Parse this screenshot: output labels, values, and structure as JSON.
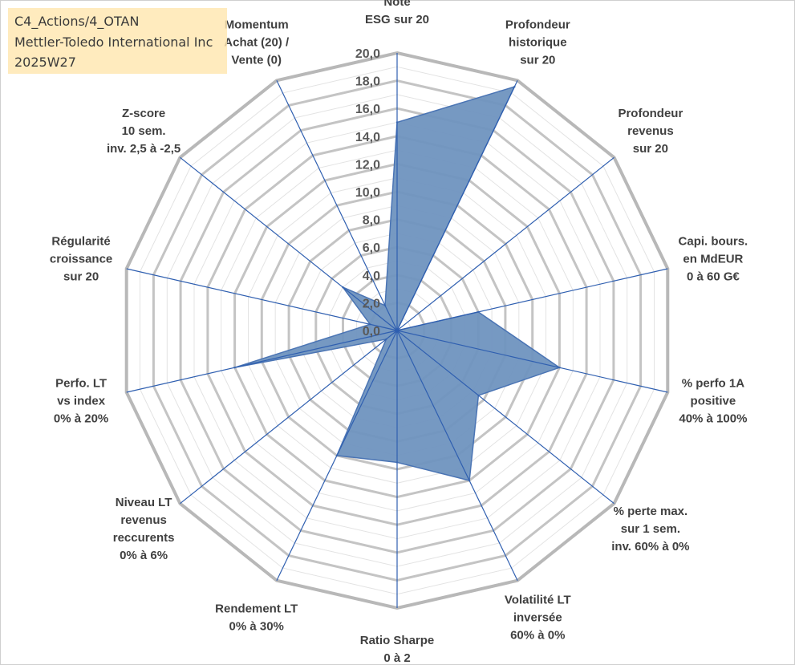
{
  "title_box": {
    "line1": "C4_Actions/4_OTAN",
    "line2": "Mettler-Toledo International Inc",
    "line3": "2025W27"
  },
  "chart_data": {
    "type": "radar",
    "title": "",
    "axes": [
      [
        "Note",
        "ESG sur 20"
      ],
      [
        "Profondeur",
        "historique",
        "sur 20"
      ],
      [
        "Profondeur",
        "revenus",
        "sur 20"
      ],
      [
        "Capi. bours.",
        "en MdEUR",
        "0 à 60 G€"
      ],
      [
        "% perfo 1A",
        "positive",
        "40% à 100%"
      ],
      [
        "% perte max.",
        "sur 1 sem.",
        "inv. 60% à 0%"
      ],
      [
        "Volatilité LT",
        "inversée",
        "60% à 0%"
      ],
      [
        "Ratio Sharpe",
        "0 à 2"
      ],
      [
        "Rendement LT",
        "0% à 30%"
      ],
      [
        "Niveau LT",
        "revenus",
        "reccurents",
        "0% à 6%"
      ],
      [
        "Perfo. LT",
        "vs index",
        "0% à 20%"
      ],
      [
        "Régularité",
        "croissance",
        "sur 20"
      ],
      [
        "Z-score",
        "10 sem.",
        "inv. 2,5 à -2,5"
      ],
      [
        "Momentum",
        "Achat (20) /",
        "Vente (0)"
      ]
    ],
    "scale": {
      "min": 0,
      "max": 20,
      "step": 2,
      "minor_step": 1
    },
    "tick_labels": [
      "0,0",
      "2,0",
      "4,0",
      "6,0",
      "8,0",
      "10,0",
      "12,0",
      "14,0",
      "16,0",
      "18,0",
      "20,0"
    ],
    "series": [
      {
        "values": [
          15.0,
          19.5,
          0.0,
          6.0,
          12.0,
          7.5,
          12.0,
          9.5,
          10.0,
          1.0,
          12.0,
          2.0,
          5.0,
          2.0
        ]
      }
    ],
    "fill_color": "#6f93bf",
    "line_color": "#4a74b4",
    "spoke_color": "#2f5fb0",
    "grid_color": "#bfbfbf",
    "grid": true,
    "legend": "none"
  }
}
